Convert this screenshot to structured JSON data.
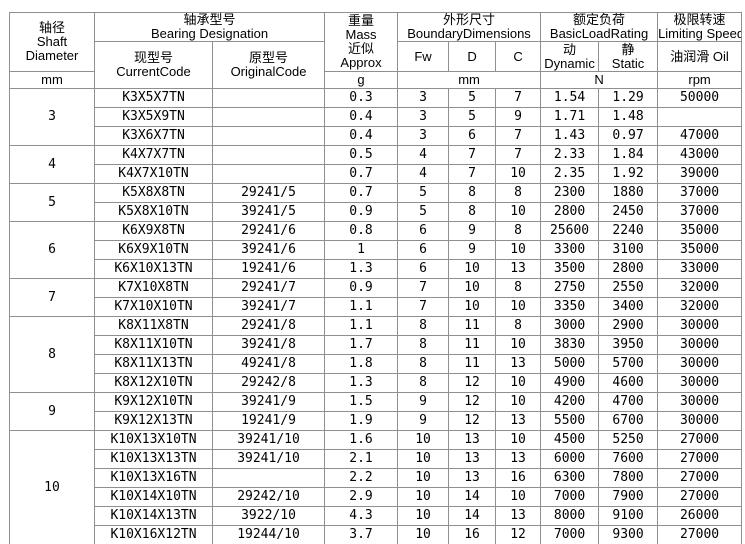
{
  "header": {
    "shaft": {
      "cn": "轴径",
      "en1": "Shaft",
      "en2": "Diameter",
      "unit": "mm"
    },
    "bearing": {
      "cn": "轴承型号",
      "en": "Bearing Designation"
    },
    "current": {
      "cn": "现型号",
      "en": "CurrentCode"
    },
    "original": {
      "cn": "原型号",
      "en": "OriginalCode"
    },
    "mass": {
      "cn": "重量",
      "en": "Mass",
      "cn2": "近似",
      "en2": "Approx",
      "unit": "g"
    },
    "dims": {
      "cn": "外形尺寸",
      "en": "BoundaryDimensions",
      "fw": "Fw",
      "d": "D",
      "c": "C",
      "unit": "mm"
    },
    "load": {
      "cn": "额定负荷",
      "en": "BasicLoadRating",
      "dyn_cn": "动",
      "dyn_en": "Dynamic",
      "stat_cn": "静",
      "stat_en": "Static",
      "unit": "N"
    },
    "speed": {
      "cn": "极限转速",
      "en": "Limiting Speed",
      "sub": "油润滑 Oil",
      "unit": "rpm"
    }
  },
  "groups": [
    {
      "diameter": "3",
      "rows": [
        {
          "current": "K3X5X7TN",
          "original": "",
          "mass": "0.3",
          "fw": "3",
          "d": "5",
          "c": "7",
          "dynamic": "1.54",
          "static": "1.29",
          "speed": "50000"
        },
        {
          "current": "K3X5X9TN",
          "original": "",
          "mass": "0.4",
          "fw": "3",
          "d": "5",
          "c": "9",
          "dynamic": "1.71",
          "static": "1.48",
          "speed": ""
        },
        {
          "current": "K3X6X7TN",
          "original": "",
          "mass": "0.4",
          "fw": "3",
          "d": "6",
          "c": "7",
          "dynamic": "1.43",
          "static": "0.97",
          "speed": "47000"
        }
      ]
    },
    {
      "diameter": "4",
      "rows": [
        {
          "current": "K4X7X7TN",
          "original": "",
          "mass": "0.5",
          "fw": "4",
          "d": "7",
          "c": "7",
          "dynamic": "2.33",
          "static": "1.84",
          "speed": "43000"
        },
        {
          "current": "K4X7X10TN",
          "original": "",
          "mass": "0.7",
          "fw": "4",
          "d": "7",
          "c": "10",
          "dynamic": "2.35",
          "static": "1.92",
          "speed": "39000"
        }
      ]
    },
    {
      "diameter": "5",
      "rows": [
        {
          "current": "K5X8X8TN",
          "original": "29241/5",
          "mass": "0.7",
          "fw": "5",
          "d": "8",
          "c": "8",
          "dynamic": "2300",
          "static": "1880",
          "speed": "37000"
        },
        {
          "current": "K5X8X10TN",
          "original": "39241/5",
          "mass": "0.9",
          "fw": "5",
          "d": "8",
          "c": "10",
          "dynamic": "2800",
          "static": "2450",
          "speed": "37000"
        }
      ]
    },
    {
      "diameter": "6",
      "rows": [
        {
          "current": "K6X9X8TN",
          "original": "29241/6",
          "mass": "0.8",
          "fw": "6",
          "d": "9",
          "c": "8",
          "dynamic": "25600",
          "static": "2240",
          "speed": "35000"
        },
        {
          "current": "K6X9X10TN",
          "original": "39241/6",
          "mass": "1",
          "fw": "6",
          "d": "9",
          "c": "10",
          "dynamic": "3300",
          "static": "3100",
          "speed": "35000"
        },
        {
          "current": "K6X10X13TN",
          "original": "19241/6",
          "mass": "1.3",
          "fw": "6",
          "d": "10",
          "c": "13",
          "dynamic": "3500",
          "static": "2800",
          "speed": "33000"
        }
      ]
    },
    {
      "diameter": "7",
      "rows": [
        {
          "current": "K7X10X8TN",
          "original": "29241/7",
          "mass": "0.9",
          "fw": "7",
          "d": "10",
          "c": "8",
          "dynamic": "2750",
          "static": "2550",
          "speed": "32000"
        },
        {
          "current": "K7X10X10TN",
          "original": "39241/7",
          "mass": "1.1",
          "fw": "7",
          "d": "10",
          "c": "10",
          "dynamic": "3350",
          "static": "3400",
          "speed": "32000"
        }
      ]
    },
    {
      "diameter": "8",
      "rows": [
        {
          "current": "K8X11X8TN",
          "original": "29241/8",
          "mass": "1.1",
          "fw": "8",
          "d": "11",
          "c": "8",
          "dynamic": "3000",
          "static": "2900",
          "speed": "30000"
        },
        {
          "current": "K8X11X10TN",
          "original": "39241/8",
          "mass": "1.7",
          "fw": "8",
          "d": "11",
          "c": "10",
          "dynamic": "3830",
          "static": "3950",
          "speed": "30000"
        },
        {
          "current": "K8X11X13TN",
          "original": "49241/8",
          "mass": "1.8",
          "fw": "8",
          "d": "11",
          "c": "13",
          "dynamic": "5000",
          "static": "5700",
          "speed": "30000"
        },
        {
          "current": "K8X12X10TN",
          "original": "29242/8",
          "mass": "1.3",
          "fw": "8",
          "d": "12",
          "c": "10",
          "dynamic": "4900",
          "static": "4600",
          "speed": "30000"
        }
      ]
    },
    {
      "diameter": "9",
      "rows": [
        {
          "current": "K9X12X10TN",
          "original": "39241/9",
          "mass": "1.5",
          "fw": "9",
          "d": "12",
          "c": "10",
          "dynamic": "4200",
          "static": "4700",
          "speed": "30000"
        },
        {
          "current": "K9X12X13TN",
          "original": "19241/9",
          "mass": "1.9",
          "fw": "9",
          "d": "12",
          "c": "13",
          "dynamic": "5500",
          "static": "6700",
          "speed": "30000"
        }
      ]
    },
    {
      "diameter": "10",
      "rows": [
        {
          "current": "K10X13X10TN",
          "original": "39241/10",
          "mass": "1.6",
          "fw": "10",
          "d": "13",
          "c": "10",
          "dynamic": "4500",
          "static": "5250",
          "speed": "27000"
        },
        {
          "current": "K10X13X13TN",
          "original": "39241/10",
          "mass": "2.1",
          "fw": "10",
          "d": "13",
          "c": "13",
          "dynamic": "6000",
          "static": "7600",
          "speed": "27000"
        },
        {
          "current": "K10X13X16TN",
          "original": "",
          "mass": "2.2",
          "fw": "10",
          "d": "13",
          "c": "16",
          "dynamic": "6300",
          "static": "7800",
          "speed": "27000"
        },
        {
          "current": "K10X14X10TN",
          "original": "29242/10",
          "mass": "2.9",
          "fw": "10",
          "d": "14",
          "c": "10",
          "dynamic": "7000",
          "static": "7900",
          "speed": "27000"
        },
        {
          "current": "K10X14X13TN",
          "original": "3922/10",
          "mass": "4.3",
          "fw": "10",
          "d": "14",
          "c": "13",
          "dynamic": "8000",
          "static": "9100",
          "speed": "26000"
        },
        {
          "current": "K10X16X12TN",
          "original": "19244/10",
          "mass": "3.7",
          "fw": "10",
          "d": "16",
          "c": "12",
          "dynamic": "7000",
          "static": "9300",
          "speed": "27000"
        }
      ]
    }
  ]
}
